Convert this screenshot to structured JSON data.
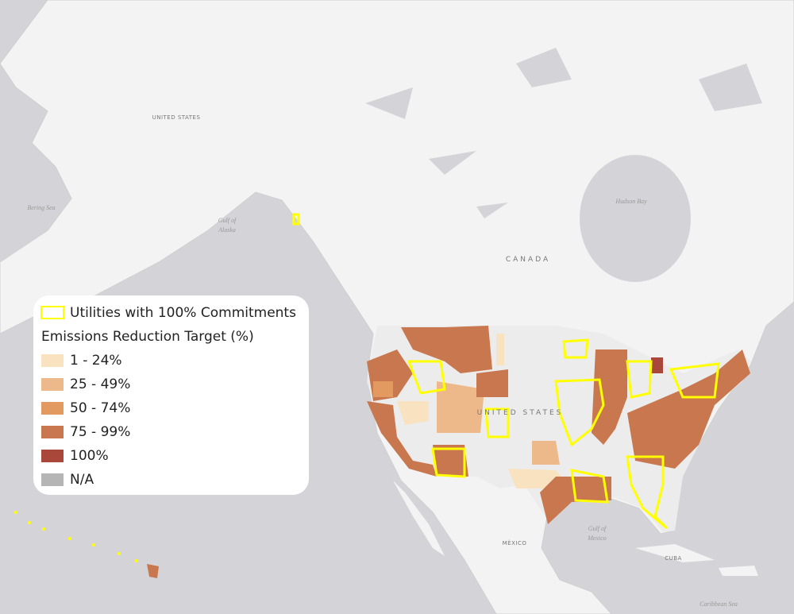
{
  "map": {
    "labels": [
      "UNITED STATES",
      "Bering Sea",
      "Gulf of",
      "Alaska",
      "Hudson Bay",
      "CANADA",
      "UNITED STATES",
      "MÉXICO",
      "Gulf of",
      "Mexico",
      "CUBA",
      "Caribbean Sea"
    ],
    "legend": {
      "outline_item": {
        "label": "Utilities with 100% Commitments",
        "color": "#ffff00"
      },
      "title": "Emissions Reduction Target (%)",
      "items": [
        {
          "label": "1 - 24%",
          "color": "#f8e2c0"
        },
        {
          "label": "25 - 49%",
          "color": "#edb98a"
        },
        {
          "label": "50 - 74%",
          "color": "#e39a60"
        },
        {
          "label": "75 - 99%",
          "color": "#c9774e"
        },
        {
          "label": "100%",
          "color": "#a9483a"
        },
        {
          "label": "N/A",
          "color": "#b5b5b5"
        }
      ]
    }
  }
}
